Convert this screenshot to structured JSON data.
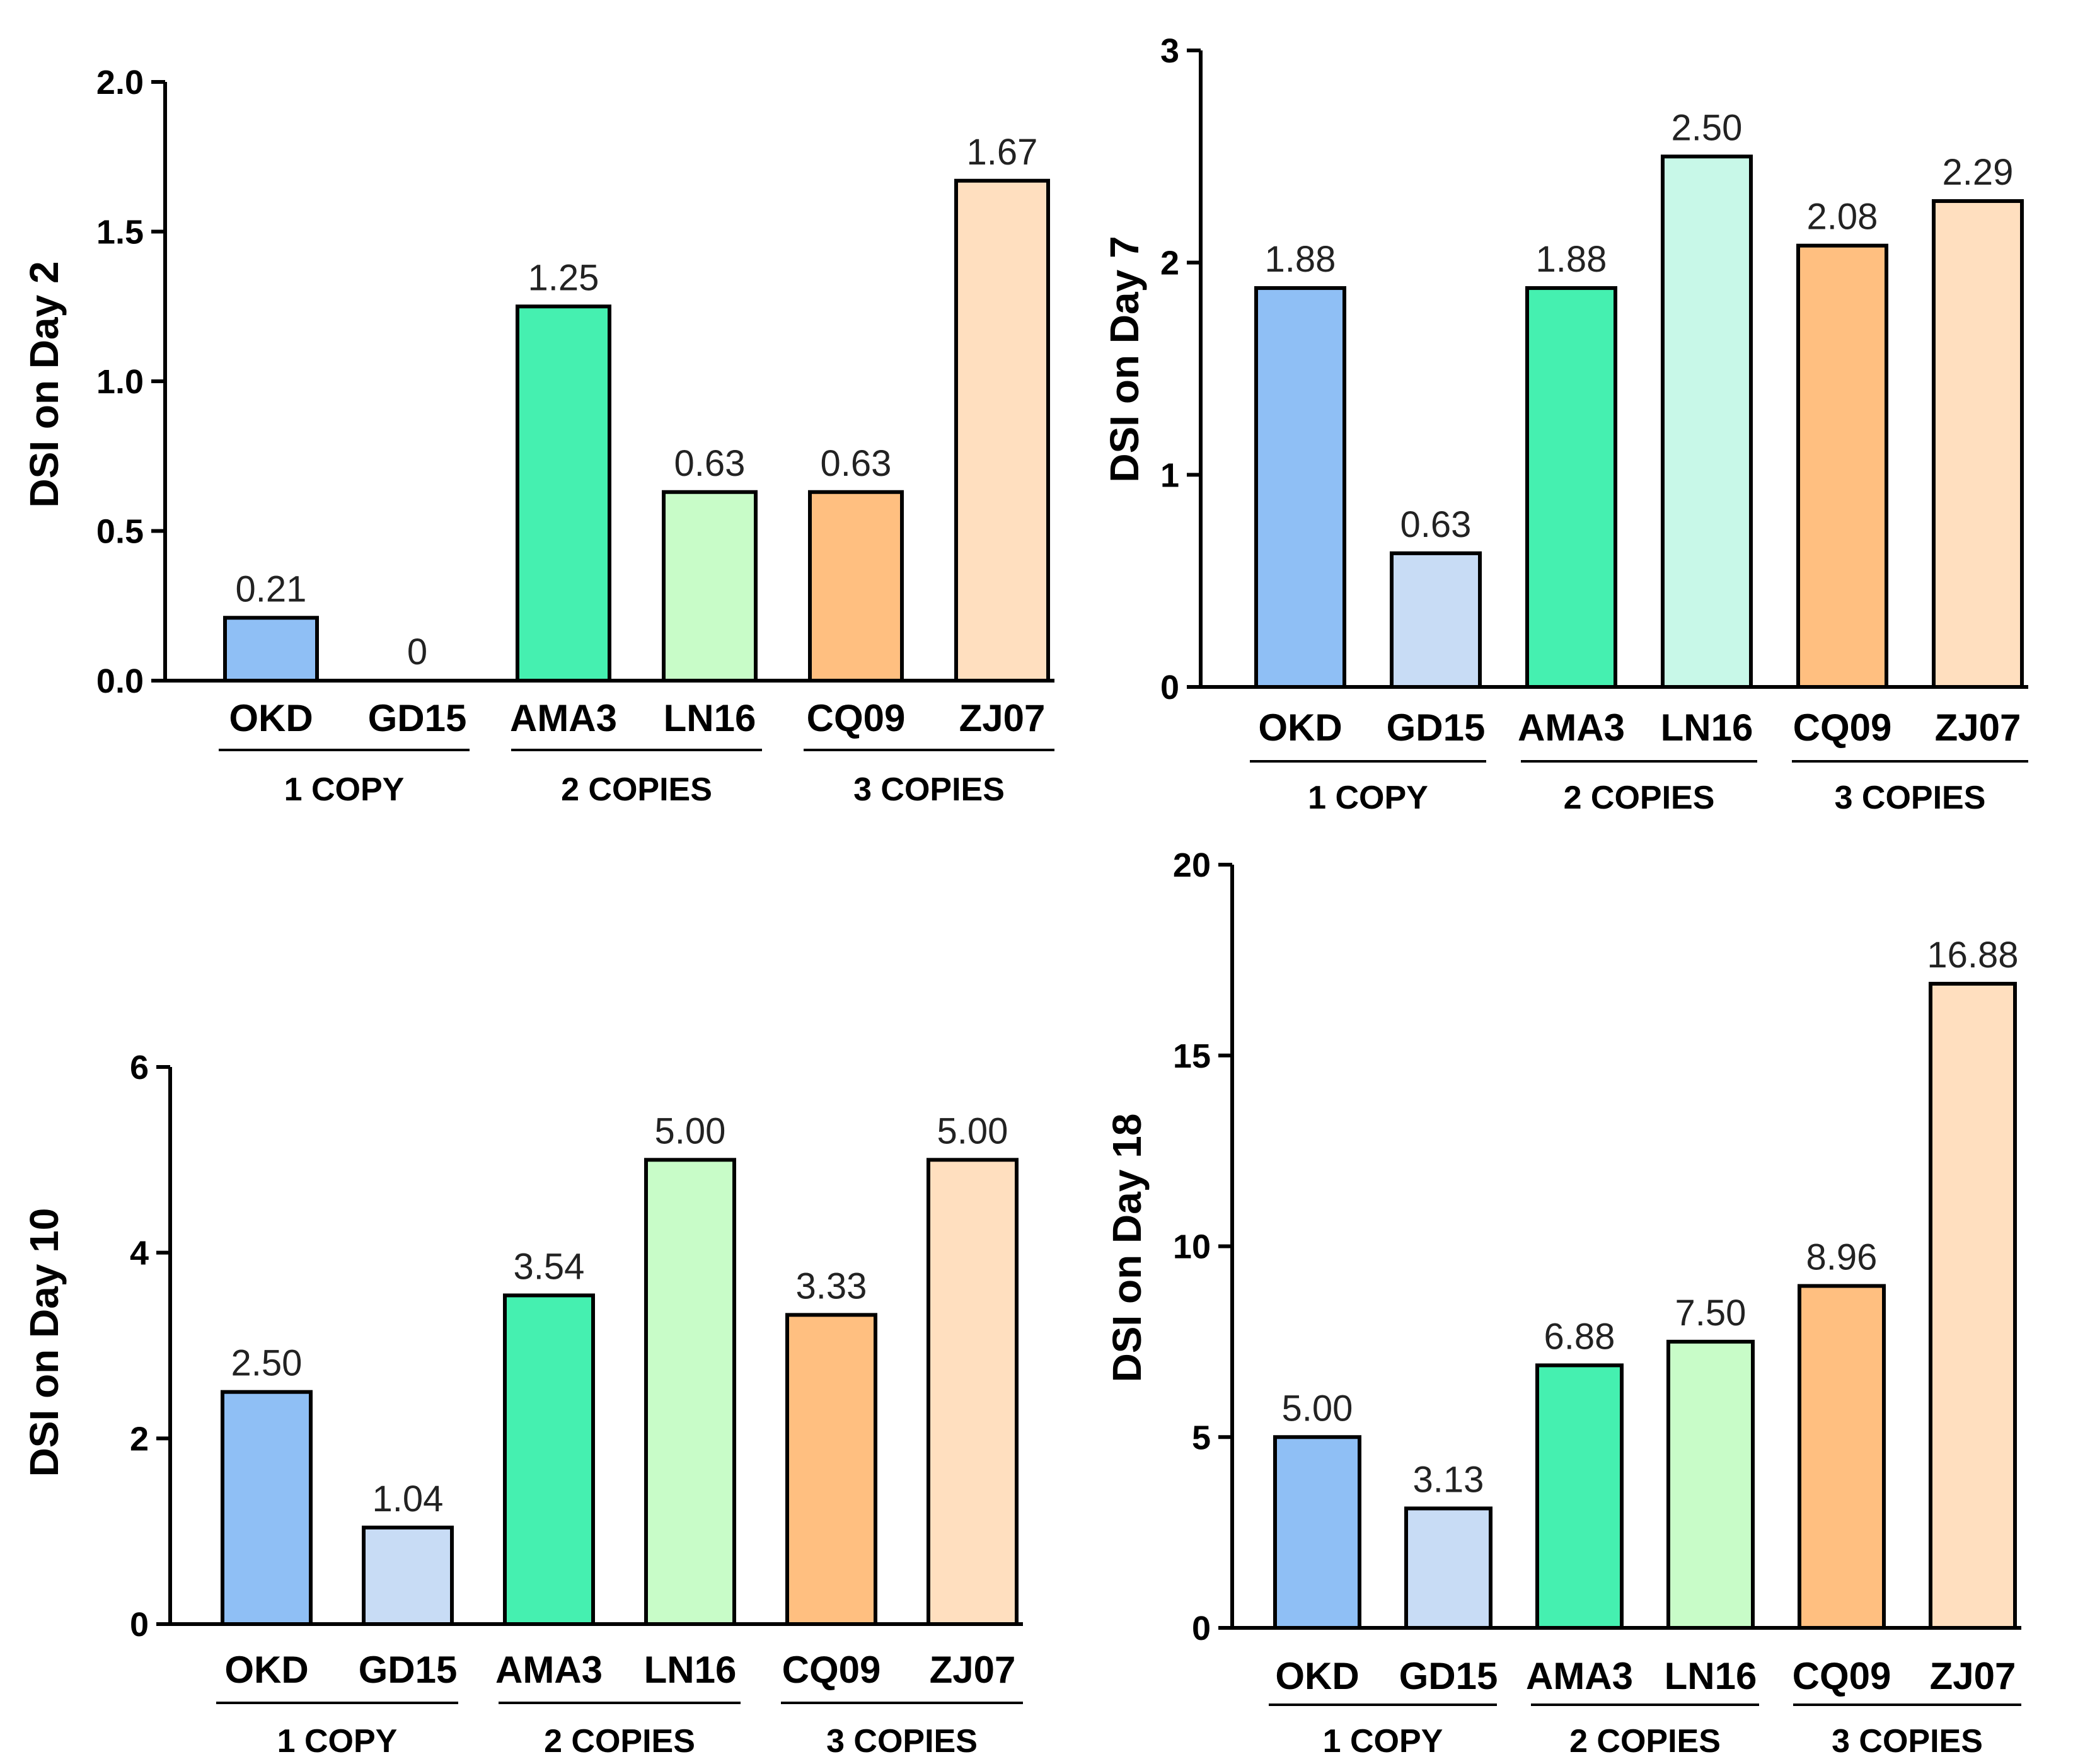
{
  "chart_data": [
    {
      "type": "bar",
      "ylabel": "DSI on Day 2",
      "ylim": [
        0,
        2.0
      ],
      "ticks": [
        0,
        0.5,
        1.0,
        1.5,
        2.0
      ],
      "tick_labels": [
        "0.0",
        "0.5",
        "1.0",
        "1.5",
        "2.0"
      ],
      "categories": [
        "OKD",
        "GD15",
        "AMA3",
        "LN16",
        "CQ09",
        "ZJ07"
      ],
      "values": [
        0.21,
        0,
        1.25,
        0.63,
        0.63,
        1.67
      ],
      "value_labels": [
        "0.21",
        "0",
        "1.25",
        "0.63",
        "0.63",
        "1.67"
      ],
      "colors": [
        "#8fbff5",
        "#c8dcf5",
        "#45f0b0",
        "#c8fcc8",
        "#ffbf80",
        "#ffdfbf"
      ],
      "groups": [
        {
          "label": "1 COPY",
          "categories": [
            "OKD",
            "GD15"
          ]
        },
        {
          "label": "2 COPIES",
          "categories": [
            "AMA3",
            "LN16"
          ]
        },
        {
          "label": "3 COPIES",
          "categories": [
            "CQ09",
            "ZJ07"
          ]
        }
      ]
    },
    {
      "type": "bar",
      "ylabel": "DSI on Day 7",
      "ylim": [
        0,
        3
      ],
      "ticks": [
        0,
        1,
        2,
        3
      ],
      "tick_labels": [
        "0",
        "1",
        "2",
        "3"
      ],
      "categories": [
        "OKD",
        "GD15",
        "AMA3",
        "LN16",
        "CQ09",
        "ZJ07"
      ],
      "values": [
        1.88,
        0.63,
        1.88,
        2.5,
        2.08,
        2.29
      ],
      "value_labels": [
        "1.88",
        "0.63",
        "1.88",
        "2.50",
        "2.08",
        "2.29"
      ],
      "colors": [
        "#8fbff5",
        "#c8dcf5",
        "#45f0b0",
        "#c8f8e8",
        "#ffbf80",
        "#ffdfbf"
      ],
      "groups": [
        {
          "label": "1 COPY",
          "categories": [
            "OKD",
            "GD15"
          ]
        },
        {
          "label": "2 COPIES",
          "categories": [
            "AMA3",
            "LN16"
          ]
        },
        {
          "label": "3 COPIES",
          "categories": [
            "CQ09",
            "ZJ07"
          ]
        }
      ]
    },
    {
      "type": "bar",
      "ylabel": "DSI on Day 10",
      "ylim": [
        0,
        6
      ],
      "ticks": [
        0,
        2,
        4,
        6
      ],
      "tick_labels": [
        "0",
        "2",
        "4",
        "6"
      ],
      "categories": [
        "OKD",
        "GD15",
        "AMA3",
        "LN16",
        "CQ09",
        "ZJ07"
      ],
      "values": [
        2.5,
        1.04,
        3.54,
        5.0,
        3.33,
        5.0
      ],
      "value_labels": [
        "2.50",
        "1.04",
        "3.54",
        "5.00",
        "3.33",
        "5.00"
      ],
      "colors": [
        "#8fbff5",
        "#c8dcf5",
        "#45f0b0",
        "#c8fcc8",
        "#ffbf80",
        "#ffdfbf"
      ],
      "groups": [
        {
          "label": "1 COPY",
          "categories": [
            "OKD",
            "GD15"
          ]
        },
        {
          "label": "2 COPIES",
          "categories": [
            "AMA3",
            "LN16"
          ]
        },
        {
          "label": "3 COPIES",
          "categories": [
            "CQ09",
            "ZJ07"
          ]
        }
      ]
    },
    {
      "type": "bar",
      "ylabel": "DSI on Day 18",
      "ylim": [
        0,
        20
      ],
      "ticks": [
        0,
        5,
        10,
        15,
        20
      ],
      "tick_labels": [
        "0",
        "5",
        "10",
        "15",
        "20"
      ],
      "categories": [
        "OKD",
        "GD15",
        "AMA3",
        "LN16",
        "CQ09",
        "ZJ07"
      ],
      "values": [
        5.0,
        3.13,
        6.88,
        7.5,
        8.96,
        16.88
      ],
      "value_labels": [
        "5.00",
        "3.13",
        "6.88",
        "7.50",
        "8.96",
        "16.88"
      ],
      "colors": [
        "#8fbff5",
        "#c8dcf5",
        "#45f0b0",
        "#c8fcc8",
        "#ffbf80",
        "#ffdfbf"
      ],
      "groups": [
        {
          "label": "1 COPY",
          "categories": [
            "OKD",
            "GD15"
          ]
        },
        {
          "label": "2 COPIES",
          "categories": [
            "AMA3",
            "LN16"
          ]
        },
        {
          "label": "3 COPIES",
          "categories": [
            "CQ09",
            "ZJ07"
          ]
        }
      ]
    }
  ]
}
